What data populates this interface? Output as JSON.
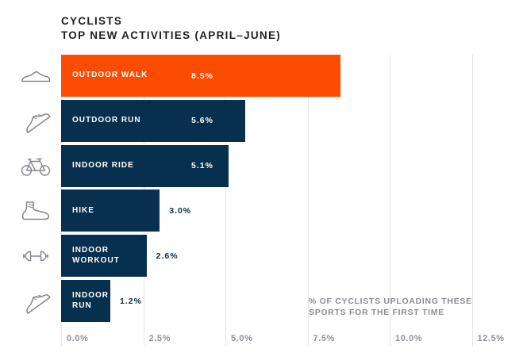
{
  "title": {
    "line1": "CYCLISTS",
    "line2": "TOP NEW ACTIVITIES (APRIL–JUNE)"
  },
  "annotation": {
    "line1": "% OF CYCLISTS UPLOADING THESE",
    "line2": "SPORTS FOR THE FIRST TIME"
  },
  "colors": {
    "accent_orange": "#FC4C02",
    "navy": "#06304D",
    "gridline": "#E6E6EA",
    "tick_text": "#90909A",
    "annotation_text": "#8C8C96",
    "title_text": "#1E1E1E",
    "icon_stroke": "#85858E",
    "background": "#FFFFFF"
  },
  "chart_data": {
    "type": "bar",
    "orientation": "horizontal",
    "title": "CYCLISTS — TOP NEW ACTIVITIES (APRIL–JUNE)",
    "xlabel": "",
    "ylabel": "",
    "categories": [
      "OUTDOOR WALK",
      "OUTDOOR RUN",
      "INDOOR RIDE",
      "HIKE",
      "INDOOR WORKOUT",
      "INDOOR RUN"
    ],
    "values": [
      8.5,
      5.6,
      5.1,
      3.0,
      2.6,
      1.2
    ],
    "value_labels": [
      "8.5%",
      "5.6%",
      "5.1%",
      "3.0%",
      "2.6%",
      "1.2%"
    ],
    "bar_colors": [
      "#FC4C02",
      "#06304D",
      "#06304D",
      "#06304D",
      "#06304D",
      "#06304D"
    ],
    "icons": [
      "walking-shoe",
      "running-shoe",
      "bicycle",
      "hiking-boot",
      "dumbbell",
      "running-shoe"
    ],
    "xlim": [
      0,
      12.5
    ],
    "x_ticks": [
      "0.0%",
      "2.5%",
      "5.0%",
      "7.5%",
      "10.0%",
      "12.5%"
    ],
    "x_tick_values": [
      0,
      2.5,
      5.0,
      7.5,
      10.0,
      12.5
    ],
    "grid": "vertical-lines",
    "legend": "none",
    "annotation": "% OF CYCLISTS UPLOADING THESE SPORTS FOR THE FIRST TIME"
  }
}
